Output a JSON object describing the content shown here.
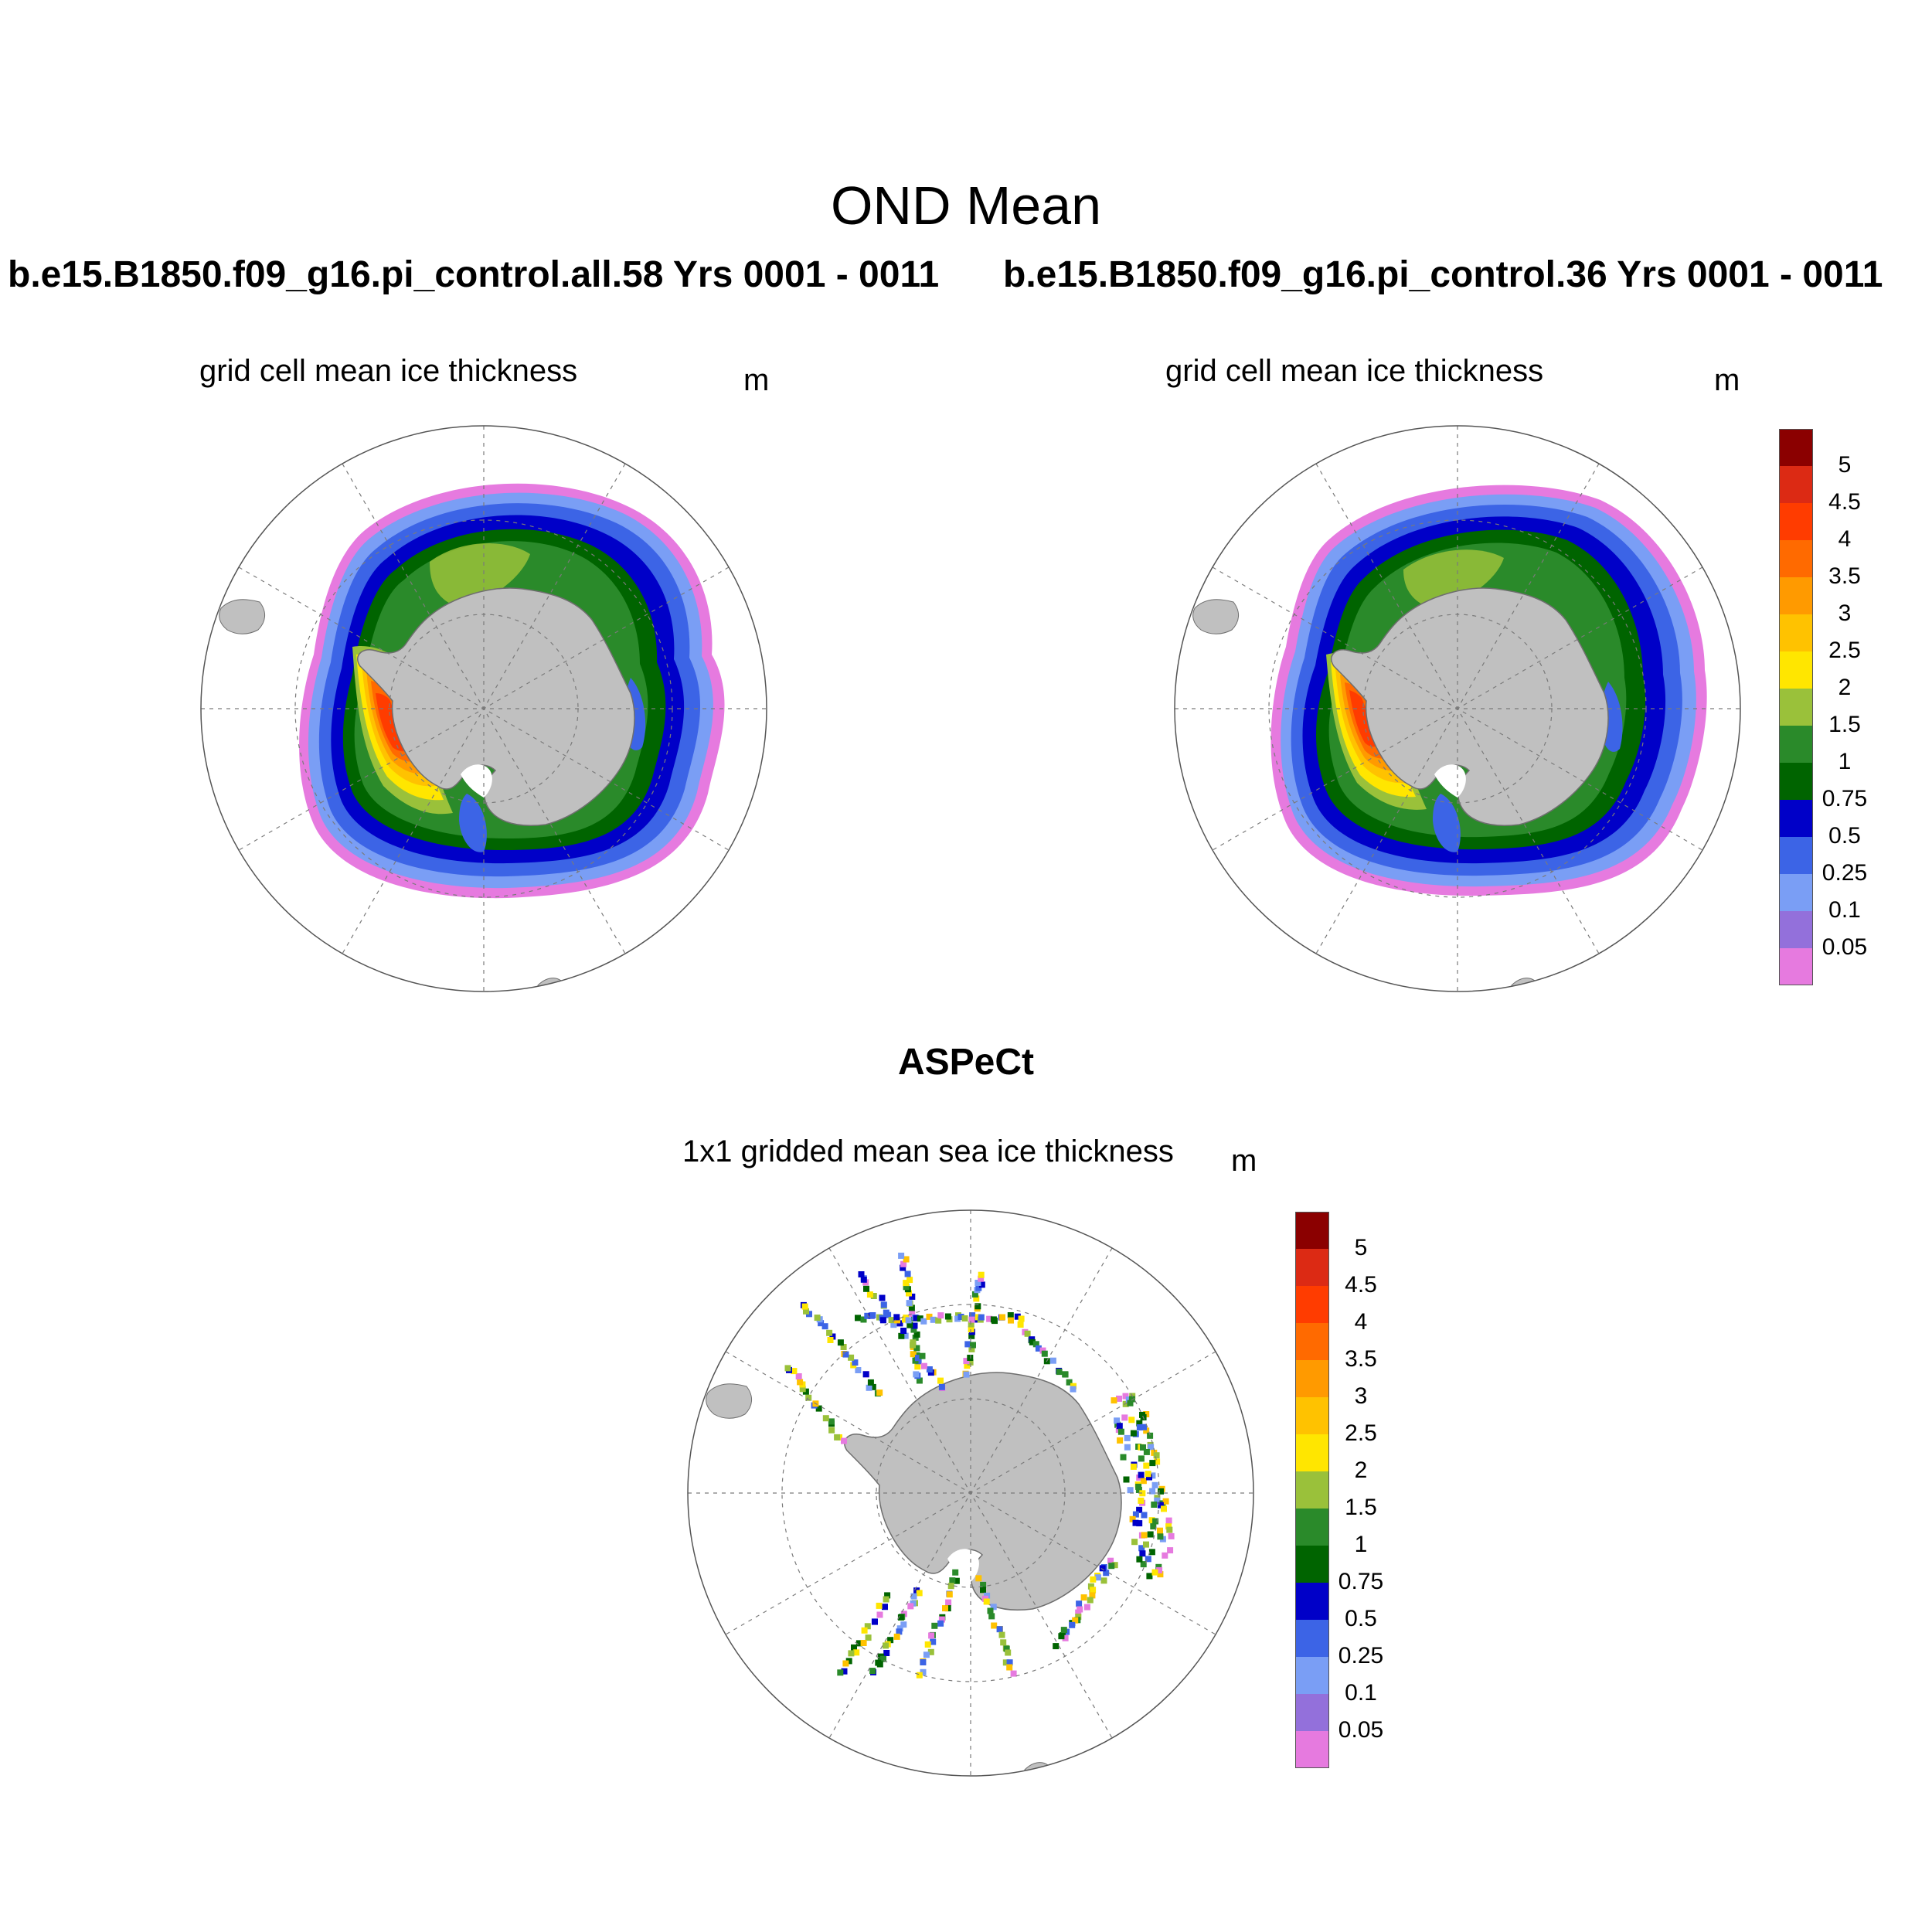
{
  "figure": {
    "title": "OND Mean",
    "observations_title": "ASPeCt"
  },
  "panels": [
    {
      "id": "model-58",
      "case_title": "b.e15.B1850.f09_g16.pi_control.all.58  Yrs 0001 - 0011",
      "subtitle": "grid cell mean ice thickness",
      "units": "m"
    },
    {
      "id": "model-36",
      "case_title": "b.e15.B1850.f09_g16.pi_control.36  Yrs 0001 - 0011",
      "subtitle": "grid cell mean ice thickness",
      "units": "m"
    },
    {
      "id": "aspect-obs",
      "subtitle": "1x1 gridded mean sea ice thickness",
      "units": "m"
    }
  ],
  "colorbar": {
    "labels": [
      "5",
      "4.5",
      "4",
      "3.5",
      "3",
      "2.5",
      "2",
      "1.5",
      "1",
      "0.75",
      "0.5",
      "0.25",
      "0.1",
      "0.05"
    ],
    "colors_top_to_bottom": [
      "#8b0000",
      "#dc2a14",
      "#ff3c00",
      "#ff6a00",
      "#ff9a00",
      "#ffc200",
      "#ffe600",
      "#9ac13a",
      "#2a8a2a",
      "#006400",
      "#0000c8",
      "#3c64e6",
      "#7a9ef5",
      "#9370db",
      "#e67adf"
    ]
  },
  "colors": {
    "land": "#c0c0c0",
    "land_edge": "#6e6e6e",
    "grid": "#7a7a7a"
  }
}
